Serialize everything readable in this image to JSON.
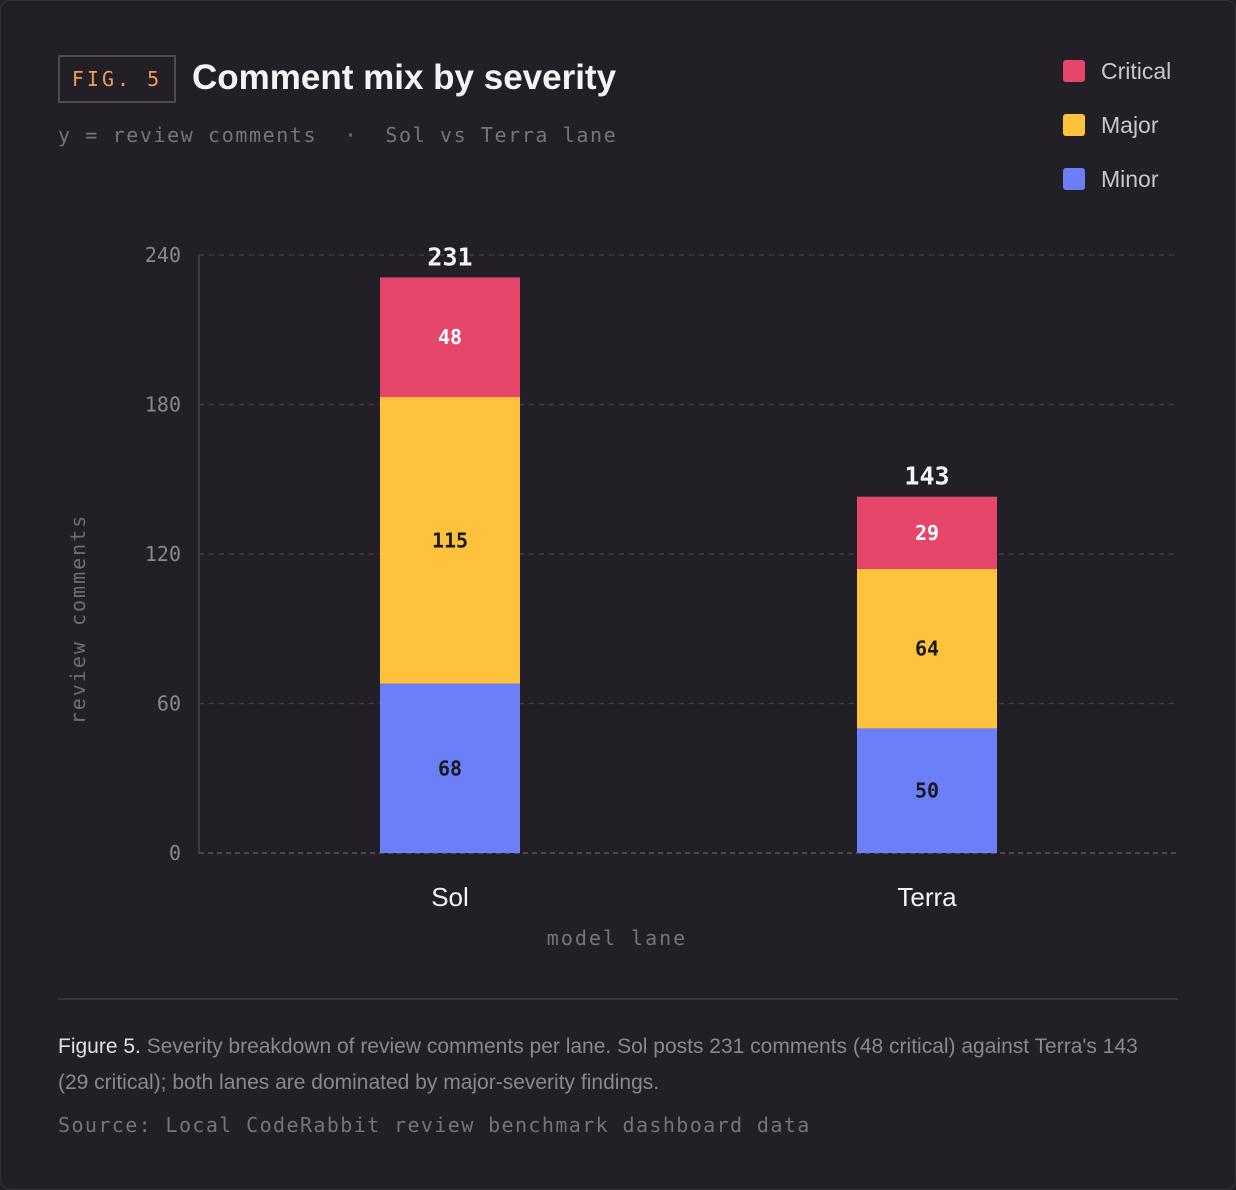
{
  "header": {
    "fig_tag": "FIG. 5",
    "title": "Comment mix by severity",
    "subtitle": "y = review comments  ·  Sol vs Terra lane"
  },
  "legend": {
    "items": [
      {
        "label": "Critical",
        "color": "#e5466a"
      },
      {
        "label": "Major",
        "color": "#ffc23d"
      },
      {
        "label": "Minor",
        "color": "#6b7ff7"
      }
    ]
  },
  "chart_data": {
    "type": "bar",
    "stacked": true,
    "categories": [
      "Sol",
      "Terra"
    ],
    "series": [
      {
        "name": "Minor",
        "color": "#6b7ff7",
        "values": [
          68,
          50
        ]
      },
      {
        "name": "Major",
        "color": "#ffc23d",
        "values": [
          115,
          64
        ]
      },
      {
        "name": "Critical",
        "color": "#e5466a",
        "values": [
          48,
          29
        ]
      }
    ],
    "totals": [
      231,
      143
    ],
    "xlabel": "model lane",
    "ylabel": "review comments",
    "ylim": [
      0,
      240
    ],
    "yticks": [
      0,
      60,
      120,
      180,
      240
    ],
    "grid": true,
    "legend_position": "top-right"
  },
  "caption": {
    "lead": "Figure 5.",
    "text": " Severity breakdown of review comments per lane. Sol posts 231 comments (48 critical) against Terra's 143 (29 critical); both lanes are dominated by major-severity findings."
  },
  "source": "Source: Local CodeRabbit review benchmark dashboard data"
}
